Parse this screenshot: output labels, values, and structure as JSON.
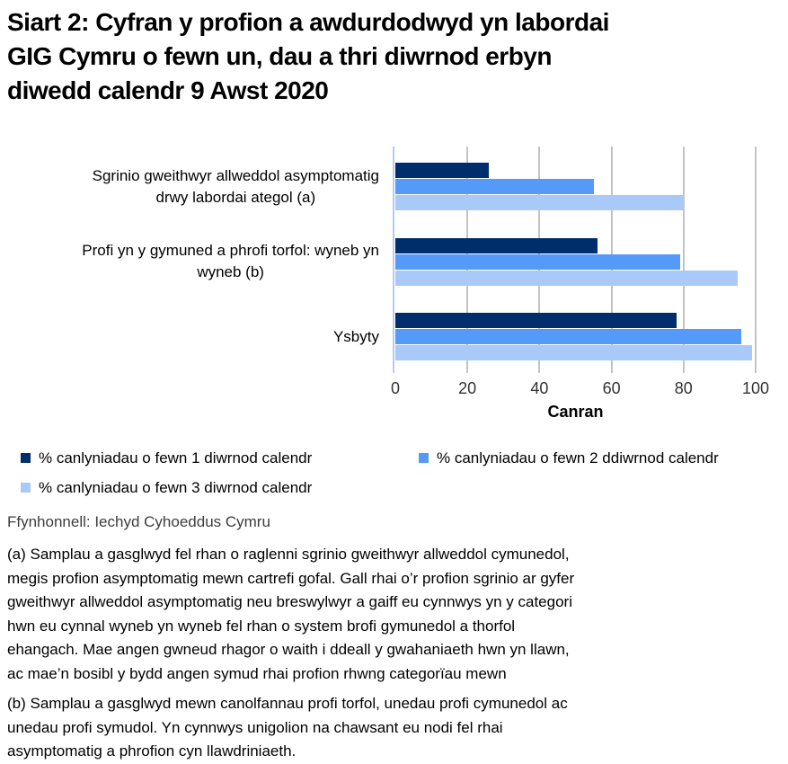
{
  "title": "Siart 2: Cyfran y profion a awdurdodwyd yn labordai\nGIG Cymru o fewn un, dau a thri diwrnod erbyn\ndiwedd calendr 9 Awst 2020",
  "source": "Ffynhonnell: Iechyd Cyhoeddus Cymru",
  "footnotes": {
    "a": "(a) Samplau a gasglwyd fel rhan o raglenni sgrinio gweithwyr allweddol cymunedol,\nmegis profion asymptomatig mewn cartrefi gofal. Gall rhai o’r profion sgrinio ar gyfer\ngweithwyr allweddol asymptomatig neu breswylwyr a gaiff eu cynnwys yn y categori\nhwn eu cynnal wyneb yn wyneb fel rhan o system brofi gymunedol a thorfol\nehangach. Mae angen gwneud rhagor o waith i ddeall y gwahaniaeth hwn yn llawn,\nac mae’n bosibl y bydd angen symud rhai profion rhwng categorïau mewn",
    "b": "(b) Samplau a gasglwyd mewn canolfannau profi torfol, unedau profi cymunedol ac\nunedau profi symudol. Yn cynnwys unigolion na chawsant eu nodi fel rhai\nasymptomatig a phrofion cyn llawdriniaeth."
  },
  "chart_data": {
    "type": "bar",
    "orientation": "horizontal",
    "categories": [
      "Sgrinio gweithwyr allweddol asymptomatig\ndrwy labordai ategol (a)",
      "Profi yn y gymuned a phrofi torfol: wyneb yn\nwyneb (b)",
      "Ysbyty"
    ],
    "series": [
      {
        "name": "% canlyniadau o fewn 1 diwrnod calendr",
        "color": "#002D6B",
        "values": [
          26,
          56,
          78
        ]
      },
      {
        "name": "% canlyniadau o fewn 2 ddiwrnod calendr",
        "color": "#559AF9",
        "values": [
          55,
          79,
          96
        ]
      },
      {
        "name": "% canlyniadau o fewn 3 diwrnod calendr",
        "color": "#A9C9F9",
        "values": [
          80,
          95,
          99
        ]
      }
    ],
    "xlabel": "Canran",
    "xlim": [
      0,
      100
    ],
    "xticks": [
      0,
      20,
      40,
      60,
      80,
      100
    ],
    "grid": true,
    "legend_position": "bottom"
  },
  "colors": {
    "axis_line": "#B5CCF2",
    "gridline": "#C3C3C3"
  }
}
